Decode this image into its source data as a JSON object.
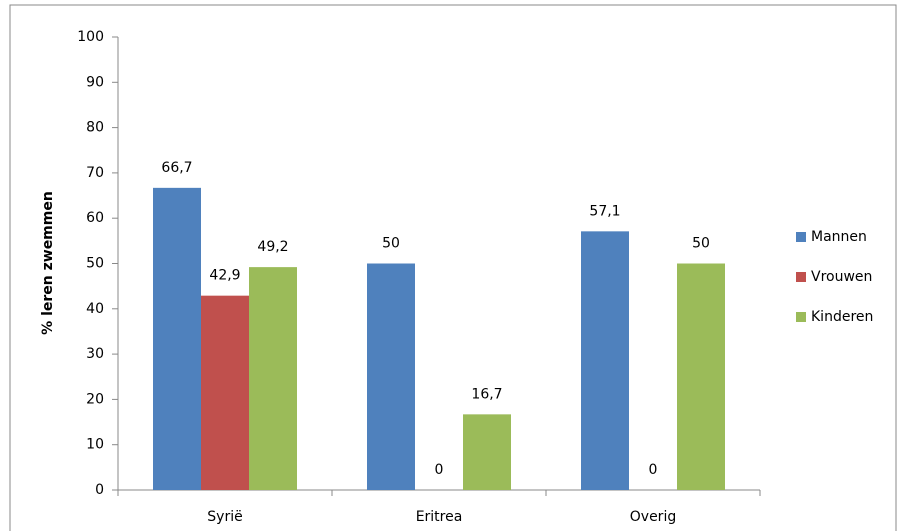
{
  "chart_data": {
    "type": "bar",
    "y_label": "% leren zwemmen",
    "categories": [
      "Syrië",
      "Eritrea",
      "Overig"
    ],
    "series": [
      {
        "name": "Mannen",
        "color": "#4f81bd",
        "values": [
          66.7,
          50,
          57.1
        ],
        "value_labels": [
          "66,7",
          "50",
          "57,1"
        ]
      },
      {
        "name": "Vrouwen",
        "color": "#c0504d",
        "values": [
          42.9,
          0,
          0
        ],
        "value_labels": [
          "42,9",
          "0",
          "0"
        ]
      },
      {
        "name": "Kinderen",
        "color": "#9bbb59",
        "values": [
          49.2,
          16.7,
          50
        ],
        "value_labels": [
          "49,2",
          "16,7",
          "50"
        ]
      }
    ],
    "ylim": [
      0,
      100
    ],
    "yticks": [
      0,
      10,
      20,
      30,
      40,
      50,
      60,
      70,
      80,
      90,
      100
    ],
    "legend": "right"
  }
}
